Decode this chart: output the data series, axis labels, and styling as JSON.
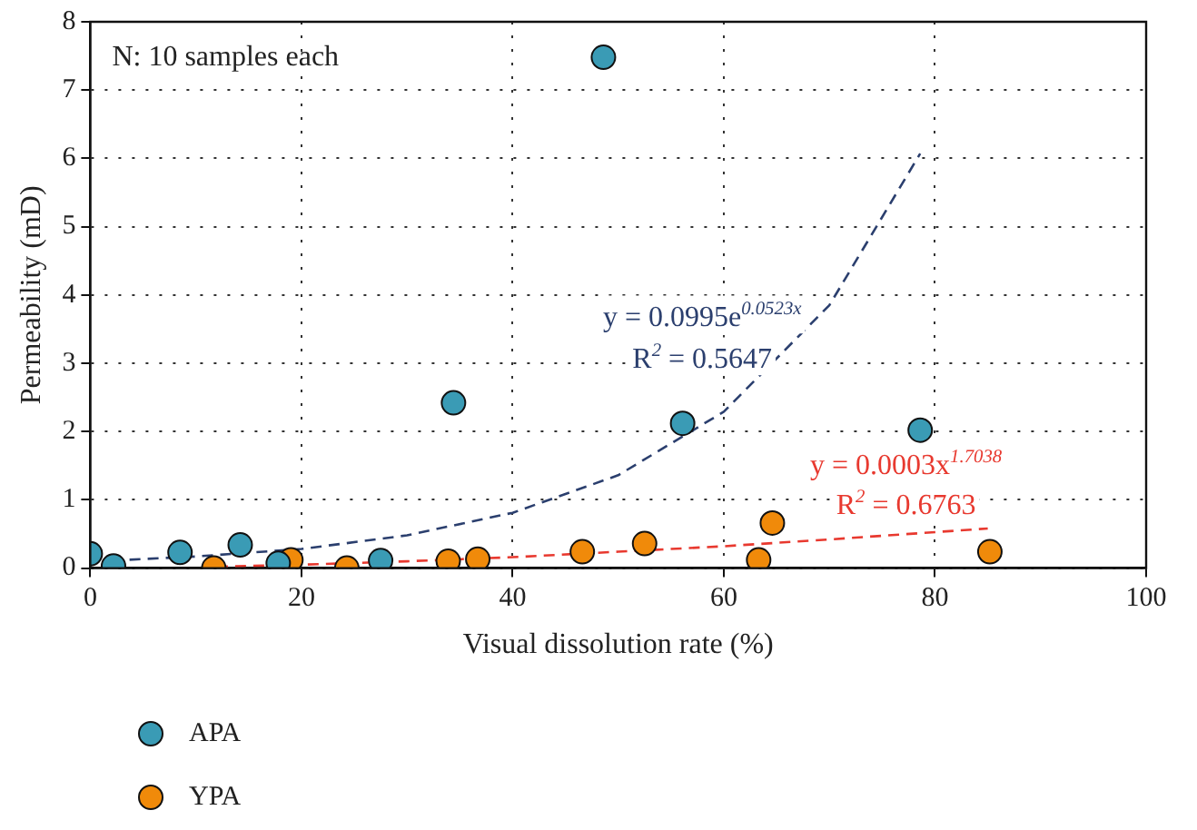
{
  "chart_data": {
    "type": "scatter",
    "xlabel": "Visual dissolution rate (%)",
    "ylabel": "Permeability (mD)",
    "xlim": [
      0,
      100
    ],
    "xticks": [
      0,
      20,
      40,
      60,
      80,
      100
    ],
    "ylim": [
      0,
      8
    ],
    "yticks": [
      0,
      1,
      2,
      3,
      4,
      5,
      6,
      7,
      8
    ],
    "grid": true,
    "legend": "bottom left",
    "marker": "circle",
    "series": [
      {
        "name": "APA",
        "color": "#3a9bb5",
        "x": [
          0,
          2.2,
          8.5,
          14.2,
          17.8,
          27.5,
          34.4,
          48.6,
          56.1,
          78.6
        ],
        "values": [
          0.21,
          0.03,
          0.23,
          0.34,
          0.07,
          0.11,
          2.42,
          7.48,
          2.12,
          2.02
        ]
      },
      {
        "name": "YPA",
        "color": "#f08a0a",
        "x": [
          11.7,
          19,
          24.3,
          33.9,
          36.7,
          46.6,
          52.5,
          63.3,
          64.6,
          85.2
        ],
        "values": [
          0,
          0.12,
          0,
          0.1,
          0.13,
          0.24,
          0.36,
          0.12,
          0.66,
          0.24
        ]
      },
      {
        "type": "line",
        "color": "#2b3f6e",
        "line_style": "dashed",
        "marker": "none",
        "x": [
          2,
          10,
          20,
          30,
          40,
          50,
          60,
          70,
          78.6
        ],
        "values": [
          0.11,
          0.17,
          0.28,
          0.48,
          0.81,
          1.36,
          2.29,
          3.85,
          6.07
        ]
      },
      {
        "type": "line",
        "color": "#e8392f",
        "line_style": "dashed",
        "marker": "none",
        "x": [
          12,
          20,
          30,
          40,
          50,
          60,
          70,
          85
        ],
        "values": [
          0.02,
          0.05,
          0.1,
          0.16,
          0.24,
          0.32,
          0.42,
          0.58
        ]
      }
    ],
    "annotations": [
      "N: 10 samples each",
      "y = 0.0995e$^{0.0523x}$",
      "R$^{2}$ = 0.5647",
      "y = 0.0003x$^{1.7038}$",
      "R$^{2}$ = 0.6763"
    ]
  }
}
